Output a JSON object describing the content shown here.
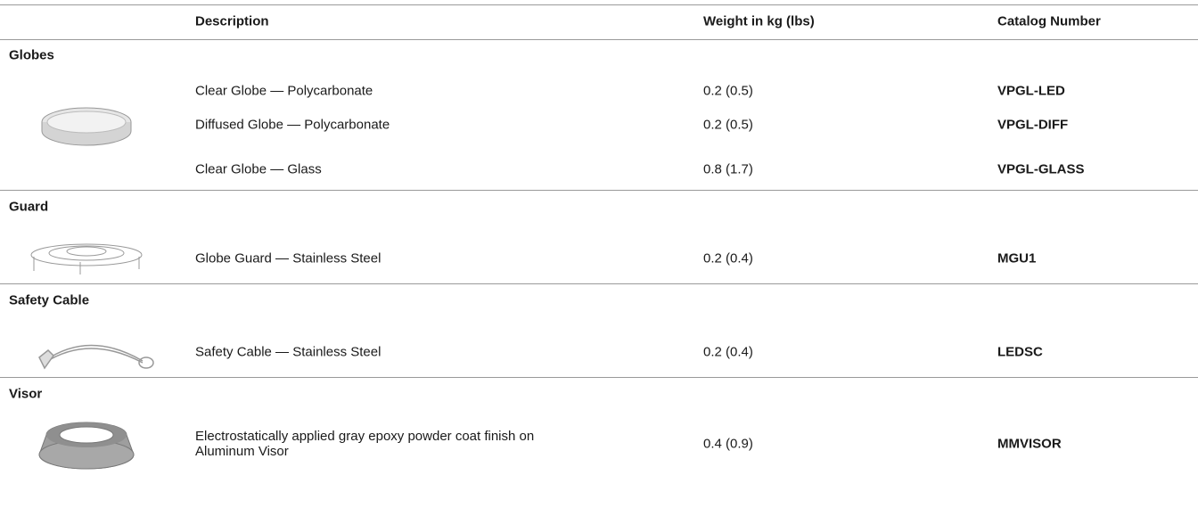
{
  "table": {
    "headers": [
      "Description",
      "Weight in kg (lbs)",
      "Catalog Number"
    ],
    "sections": [
      {
        "title": "Globes",
        "rows": [
          [
            "Clear Globe — Polycarbonate",
            "0.2 (0.5)",
            "VPGL-LED"
          ],
          [
            "Diffused Globe — Polycarbonate",
            "0.2 (0.5)",
            "VPGL-DIFF"
          ],
          [
            "Clear Globe — Glass",
            "0.8 (1.7)",
            "VPGL-GLASS"
          ]
        ]
      },
      {
        "title": "Guard",
        "rows": [
          [
            "Globe Guard — Stainless Steel",
            "0.2 (0.4)",
            "MGU1"
          ]
        ]
      },
      {
        "title": "Safety Cable",
        "rows": [
          [
            "Safety Cable — Stainless Steel",
            "0.2 (0.4)",
            "LEDSC"
          ]
        ]
      },
      {
        "title": "Visor",
        "rows": [
          [
            "Electrostatically applied gray epoxy powder coat finish on Aluminum Visor",
            "0.4 (0.9)",
            "MMVISOR"
          ]
        ]
      }
    ]
  }
}
